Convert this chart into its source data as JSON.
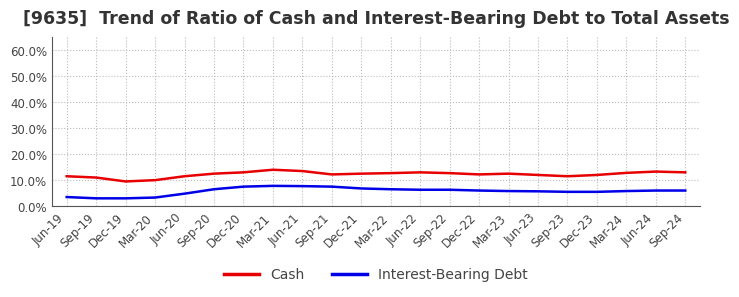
{
  "title": "[9635]  Trend of Ratio of Cash and Interest-Bearing Debt to Total Assets",
  "x_labels": [
    "Jun-19",
    "Sep-19",
    "Dec-19",
    "Mar-20",
    "Jun-20",
    "Sep-20",
    "Dec-20",
    "Mar-21",
    "Jun-21",
    "Sep-21",
    "Dec-21",
    "Mar-22",
    "Jun-22",
    "Sep-22",
    "Dec-22",
    "Mar-23",
    "Jun-23",
    "Sep-23",
    "Dec-23",
    "Mar-24",
    "Jun-24",
    "Sep-24"
  ],
  "cash": [
    0.115,
    0.11,
    0.095,
    0.1,
    0.115,
    0.125,
    0.13,
    0.14,
    0.135,
    0.122,
    0.125,
    0.127,
    0.13,
    0.127,
    0.122,
    0.125,
    0.12,
    0.115,
    0.12,
    0.128,
    0.133,
    0.13
  ],
  "interest_bearing_debt": [
    0.035,
    0.03,
    0.03,
    0.033,
    0.048,
    0.065,
    0.075,
    0.078,
    0.077,
    0.075,
    0.068,
    0.065,
    0.063,
    0.063,
    0.06,
    0.058,
    0.057,
    0.055,
    0.055,
    0.058,
    0.06,
    0.06
  ],
  "cash_color": "#e80000",
  "debt_color": "#0000e8",
  "background_color": "#ffffff",
  "plot_bg_color": "#ffffff",
  "grid_color": "#bbbbbb",
  "ylim": [
    0.0,
    0.65
  ],
  "yticks": [
    0.0,
    0.1,
    0.2,
    0.3,
    0.4,
    0.5,
    0.6
  ],
  "legend_cash": "Cash",
  "legend_debt": "Interest-Bearing Debt",
  "title_fontsize": 12.5,
  "tick_fontsize": 8.5,
  "legend_fontsize": 10
}
